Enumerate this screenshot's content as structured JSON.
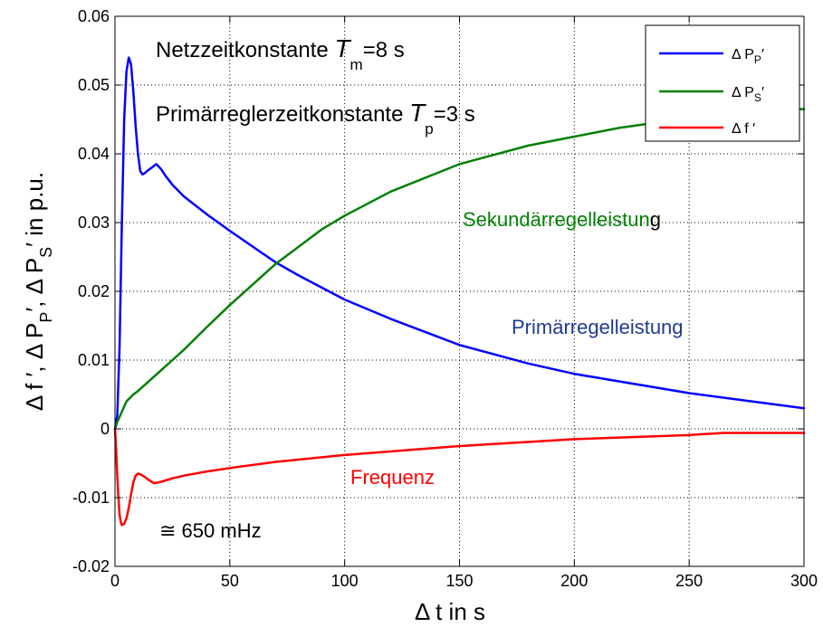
{
  "chart_data": {
    "type": "line",
    "title": "",
    "xlabel": "Δ t in s",
    "ylabel_parts": [
      "Δ f ′, Δ P",
      "P",
      "′, Δ P",
      "S",
      "′ in p.u."
    ],
    "xlim": [
      0,
      300
    ],
    "ylim": [
      -0.02,
      0.06
    ],
    "xticks": [
      0,
      50,
      100,
      150,
      200,
      250,
      300
    ],
    "yticks": [
      -0.02,
      -0.01,
      0,
      0.01,
      0.02,
      0.03,
      0.04,
      0.05,
      0.06
    ],
    "ytick_labels": [
      "-0.02",
      "-0.01",
      "0",
      "0.01",
      "0.02",
      "0.03",
      "0.04",
      "0.05",
      "0.06"
    ],
    "grid": true,
    "legend_position": "top-right",
    "series": [
      {
        "name": "Δ P_P′",
        "legend_main": "Δ P",
        "legend_sub": "P",
        "legend_suffix": "′",
        "color": "#0000ff",
        "x": [
          0,
          1,
          2,
          3,
          4,
          5,
          6,
          7,
          8,
          9,
          10,
          11,
          12,
          13,
          14,
          16,
          18,
          20,
          22,
          25,
          30,
          40,
          50,
          60,
          70,
          80,
          100,
          120,
          150,
          180,
          200,
          250,
          300
        ],
        "y": [
          0,
          0.002,
          0.012,
          0.03,
          0.045,
          0.052,
          0.054,
          0.053,
          0.049,
          0.044,
          0.04,
          0.0375,
          0.037,
          0.0372,
          0.0375,
          0.038,
          0.0385,
          0.0378,
          0.0368,
          0.0355,
          0.0338,
          0.0312,
          0.0288,
          0.0265,
          0.0242,
          0.0223,
          0.0188,
          0.016,
          0.0122,
          0.0095,
          0.008,
          0.0052,
          0.003
        ]
      },
      {
        "name": "Δ P_S′",
        "legend_main": "Δ P",
        "legend_sub": "S",
        "legend_suffix": "′",
        "color": "#008000",
        "x": [
          0,
          1,
          3,
          5,
          8,
          10,
          15,
          20,
          25,
          30,
          40,
          50,
          60,
          70,
          80,
          90,
          100,
          120,
          150,
          180,
          200,
          220,
          250,
          270,
          280,
          300
        ],
        "y": [
          0,
          0.001,
          0.0025,
          0.004,
          0.005,
          0.0055,
          0.007,
          0.0085,
          0.01,
          0.0115,
          0.0148,
          0.018,
          0.021,
          0.024,
          0.0265,
          0.029,
          0.031,
          0.0345,
          0.0385,
          0.0412,
          0.0425,
          0.0438,
          0.0452,
          0.0462,
          0.0465,
          0.0465
        ]
      },
      {
        "name": "Δ f′",
        "legend_main": "Δ f ′",
        "legend_sub": "",
        "legend_suffix": "",
        "color": "#ff0000",
        "x": [
          0,
          0.5,
          1,
          1.5,
          2,
          2.5,
          3,
          4,
          5,
          6,
          7,
          8,
          9,
          10,
          11,
          12,
          13,
          15,
          17,
          19,
          22,
          25,
          30,
          40,
          50,
          70,
          100,
          150,
          200,
          250,
          265,
          300
        ],
        "y": [
          0,
          -0.003,
          -0.007,
          -0.01,
          -0.0125,
          -0.0135,
          -0.014,
          -0.0138,
          -0.013,
          -0.0115,
          -0.0095,
          -0.0078,
          -0.0068,
          -0.0065,
          -0.0066,
          -0.0068,
          -0.007,
          -0.0075,
          -0.0079,
          -0.0078,
          -0.0075,
          -0.0072,
          -0.0068,
          -0.0062,
          -0.0057,
          -0.0048,
          -0.0038,
          -0.0025,
          -0.0015,
          -0.0009,
          -0.0006,
          -0.0006
        ]
      }
    ],
    "annotations": {
      "netz_main": "Netzzeitkonstante ",
      "netz_T": "T",
      "netz_sub": "m",
      "netz_val": "=8 s",
      "prim_main": "Primärreglerzeitkonstante ",
      "prim_T": "T",
      "prim_sub": "p",
      "prim_val": "=3 s",
      "sek_label_green": "Sekundärregelleistun",
      "sek_label_black": "g",
      "prim_label": "Primärregelleistung",
      "freq_label": "Frequenz",
      "mhz_label": "≅ 650 mHz"
    },
    "colors": {
      "prim_label": "#1f3a93",
      "sek_label": "#008000",
      "freq_label": "#ff0000"
    }
  }
}
